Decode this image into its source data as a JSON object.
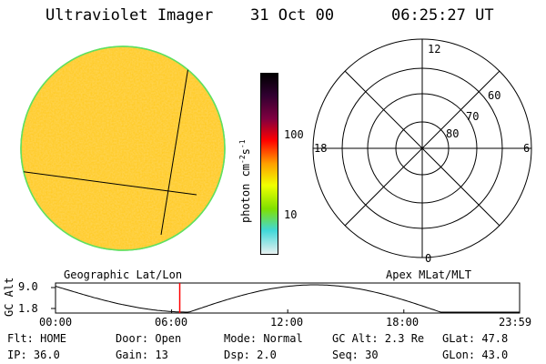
{
  "header": {
    "instrument": "Ultraviolet Imager",
    "date": "31 Oct 00",
    "time": "06:25:27 UT"
  },
  "image_panel": {
    "fill_color": "#ffd24a",
    "rim_color": "#60e060",
    "grid_color": "#000000"
  },
  "colorbar": {
    "unit_prefix": "photon cm",
    "unit_exp1": "-2",
    "unit_mid": "s",
    "unit_exp2": "-1",
    "ticks": [
      {
        "label": "100",
        "value": 100
      },
      {
        "label": "10",
        "value": 10
      }
    ],
    "range": [
      2.5,
      900
    ],
    "scale": "log",
    "stops": [
      "#e8f0f0",
      "#40d8d8",
      "#80e000",
      "#f0ff00",
      "#ffa000",
      "#ff0000",
      "#800040",
      "#300030",
      "#000000"
    ]
  },
  "polar_plot": {
    "mlt_labels": {
      "top": "12",
      "left": "18",
      "right": "6",
      "bottom": "0"
    },
    "lat_labels": [
      "60",
      "70",
      "80"
    ]
  },
  "orbit_plot": {
    "left_title": "Geographic Lat/Lon",
    "right_title": "Apex MLat/MLT",
    "axis_label": "GC Alt",
    "y_ticks": [
      "9.0",
      "1.8"
    ],
    "x_ticks": [
      "00:00",
      "06:00",
      "12:00",
      "18:00",
      "23:59"
    ],
    "marker_time_hours": 6.42,
    "marker_color": "#ff0000"
  },
  "status": {
    "row1": [
      "Flt: HOME",
      "Door: Open",
      "Mode: Normal",
      "GC Alt: 2.3 Re",
      "GLat:  47.8"
    ],
    "row2": [
      "IP: 36.0",
      "Gain: 13",
      "Dsp:    2.0",
      "Seq: 30",
      "GLon:  43.0"
    ]
  }
}
